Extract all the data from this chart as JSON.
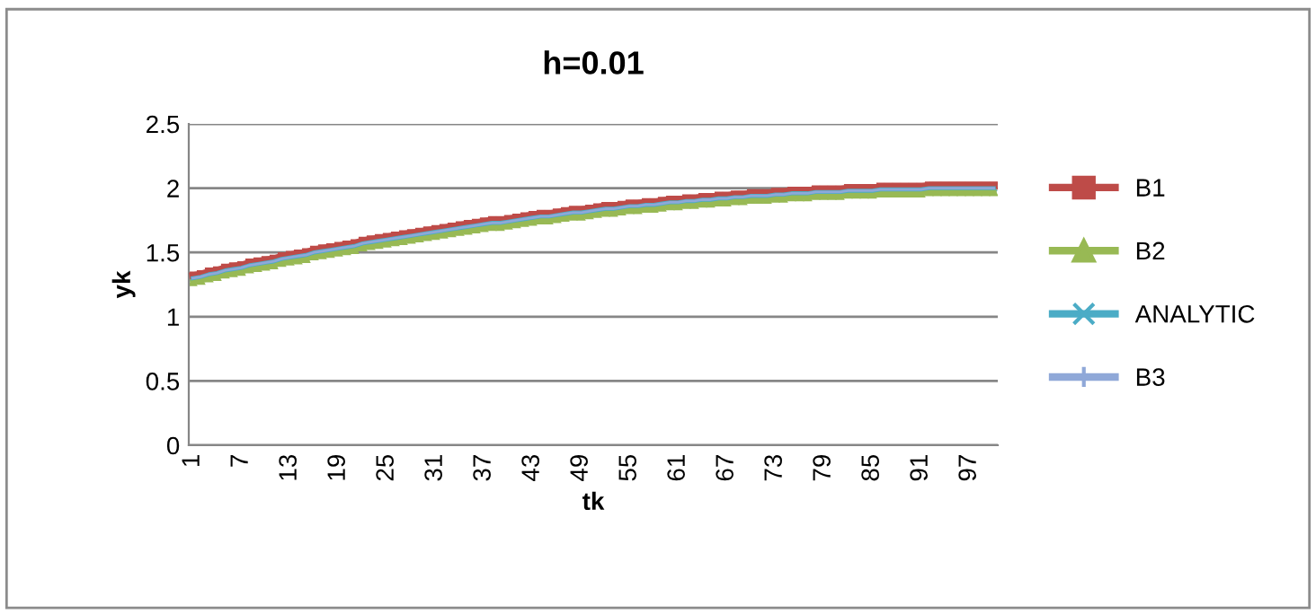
{
  "chart_data": {
    "type": "line",
    "title": "h=0.01",
    "xlabel": "tk",
    "ylabel": "yk",
    "categories": [
      "1",
      null,
      null,
      null,
      null,
      null,
      "7",
      null,
      null,
      null,
      null,
      null,
      "13",
      null,
      null,
      null,
      null,
      null,
      "19",
      null,
      null,
      null,
      null,
      null,
      "25",
      null,
      null,
      null,
      null,
      null,
      "31",
      null,
      null,
      null,
      null,
      null,
      "37",
      null,
      null,
      null,
      null,
      null,
      "43",
      null,
      null,
      null,
      null,
      null,
      "49",
      null,
      null,
      null,
      null,
      null,
      "55",
      null,
      null,
      null,
      null,
      null,
      "61",
      null,
      null,
      null,
      null,
      null,
      "67",
      null,
      null,
      null,
      null,
      null,
      "73",
      null,
      null,
      null,
      null,
      null,
      "79",
      null,
      null,
      null,
      null,
      null,
      "85",
      null,
      null,
      null,
      null,
      null,
      "91",
      null,
      null,
      null,
      null,
      null,
      "97",
      null,
      null,
      null
    ],
    "series": [
      {
        "name": "B1",
        "color": "#be4b48",
        "marker": "square",
        "values": [
          1.32,
          1.33,
          1.35,
          1.36,
          1.38,
          1.39,
          1.4,
          1.42,
          1.43,
          1.44,
          1.45,
          1.47,
          1.48,
          1.49,
          1.5,
          1.52,
          1.53,
          1.54,
          1.55,
          1.56,
          1.57,
          1.59,
          1.6,
          1.61,
          1.62,
          1.63,
          1.64,
          1.65,
          1.66,
          1.67,
          1.68,
          1.69,
          1.7,
          1.71,
          1.72,
          1.73,
          1.74,
          1.75,
          1.75,
          1.76,
          1.77,
          1.78,
          1.79,
          1.8,
          1.8,
          1.81,
          1.82,
          1.83,
          1.83,
          1.84,
          1.85,
          1.86,
          1.86,
          1.87,
          1.88,
          1.88,
          1.89,
          1.89,
          1.9,
          1.91,
          1.91,
          1.92,
          1.92,
          1.93,
          1.93,
          1.94,
          1.94,
          1.95,
          1.95,
          1.96,
          1.96,
          1.96,
          1.97,
          1.97,
          1.98,
          1.98,
          1.98,
          1.99,
          1.99,
          1.99,
          1.99,
          2.0,
          2.0,
          2.0,
          2.0,
          2.01,
          2.01,
          2.01,
          2.01,
          2.01,
          2.01,
          2.02,
          2.02,
          2.02,
          2.02,
          2.02,
          2.02,
          2.02,
          2.02,
          2.02
        ]
      },
      {
        "name": "B2",
        "color": "#98b954",
        "marker": "triangle",
        "values": [
          1.27,
          1.28,
          1.3,
          1.31,
          1.33,
          1.34,
          1.35,
          1.37,
          1.38,
          1.39,
          1.4,
          1.42,
          1.43,
          1.44,
          1.45,
          1.47,
          1.48,
          1.49,
          1.5,
          1.51,
          1.52,
          1.54,
          1.55,
          1.56,
          1.57,
          1.58,
          1.59,
          1.6,
          1.61,
          1.62,
          1.63,
          1.64,
          1.65,
          1.66,
          1.67,
          1.68,
          1.69,
          1.7,
          1.7,
          1.71,
          1.72,
          1.73,
          1.74,
          1.75,
          1.75,
          1.76,
          1.77,
          1.78,
          1.78,
          1.79,
          1.8,
          1.81,
          1.81,
          1.82,
          1.83,
          1.83,
          1.84,
          1.84,
          1.85,
          1.86,
          1.86,
          1.87,
          1.87,
          1.88,
          1.88,
          1.89,
          1.89,
          1.9,
          1.9,
          1.91,
          1.91,
          1.91,
          1.92,
          1.92,
          1.93,
          1.93,
          1.93,
          1.94,
          1.94,
          1.94,
          1.94,
          1.95,
          1.95,
          1.95,
          1.95,
          1.96,
          1.96,
          1.96,
          1.96,
          1.96,
          1.96,
          1.97,
          1.97,
          1.97,
          1.97,
          1.97,
          1.97,
          1.97,
          1.97,
          1.97
        ]
      },
      {
        "name": "ANALYTIC",
        "color": "#4bacc6",
        "marker": "cross",
        "values": [
          1.3,
          1.31,
          1.33,
          1.34,
          1.36,
          1.37,
          1.38,
          1.4,
          1.41,
          1.42,
          1.43,
          1.45,
          1.46,
          1.47,
          1.48,
          1.5,
          1.51,
          1.52,
          1.53,
          1.54,
          1.55,
          1.57,
          1.58,
          1.59,
          1.6,
          1.61,
          1.62,
          1.63,
          1.64,
          1.65,
          1.66,
          1.67,
          1.68,
          1.69,
          1.7,
          1.71,
          1.72,
          1.73,
          1.73,
          1.74,
          1.75,
          1.76,
          1.77,
          1.78,
          1.78,
          1.79,
          1.8,
          1.81,
          1.81,
          1.82,
          1.83,
          1.84,
          1.84,
          1.85,
          1.86,
          1.86,
          1.87,
          1.87,
          1.88,
          1.89,
          1.89,
          1.9,
          1.9,
          1.91,
          1.91,
          1.92,
          1.92,
          1.93,
          1.93,
          1.94,
          1.94,
          1.94,
          1.95,
          1.95,
          1.96,
          1.96,
          1.96,
          1.97,
          1.97,
          1.97,
          1.97,
          1.98,
          1.98,
          1.98,
          1.98,
          1.99,
          1.99,
          1.99,
          1.99,
          1.99,
          1.99,
          2.0,
          2.0,
          2.0,
          2.0,
          2.0,
          2.0,
          2.0,
          2.0,
          2.0
        ]
      },
      {
        "name": "B3",
        "color": "#8fa8d8",
        "marker": "plus",
        "values": [
          1.3,
          1.31,
          1.33,
          1.34,
          1.36,
          1.37,
          1.38,
          1.4,
          1.41,
          1.42,
          1.43,
          1.45,
          1.46,
          1.47,
          1.48,
          1.5,
          1.51,
          1.52,
          1.53,
          1.54,
          1.55,
          1.57,
          1.58,
          1.59,
          1.6,
          1.61,
          1.62,
          1.63,
          1.64,
          1.65,
          1.66,
          1.67,
          1.68,
          1.69,
          1.7,
          1.71,
          1.72,
          1.73,
          1.73,
          1.74,
          1.75,
          1.76,
          1.77,
          1.78,
          1.78,
          1.79,
          1.8,
          1.81,
          1.81,
          1.82,
          1.83,
          1.84,
          1.84,
          1.85,
          1.86,
          1.86,
          1.87,
          1.87,
          1.88,
          1.89,
          1.89,
          1.9,
          1.9,
          1.91,
          1.91,
          1.92,
          1.92,
          1.93,
          1.93,
          1.94,
          1.94,
          1.94,
          1.95,
          1.95,
          1.96,
          1.96,
          1.96,
          1.97,
          1.97,
          1.97,
          1.97,
          1.98,
          1.98,
          1.98,
          1.98,
          1.99,
          1.99,
          1.99,
          1.99,
          1.99,
          1.99,
          2.0,
          2.0,
          2.0,
          2.0,
          2.0,
          2.0,
          2.0,
          2.0,
          2.0
        ]
      }
    ],
    "ylim": [
      0,
      2.5
    ],
    "yticks": [
      0,
      0.5,
      1,
      1.5,
      2,
      2.5
    ],
    "grid": "y",
    "legend": "right",
    "line_style": "solid"
  }
}
